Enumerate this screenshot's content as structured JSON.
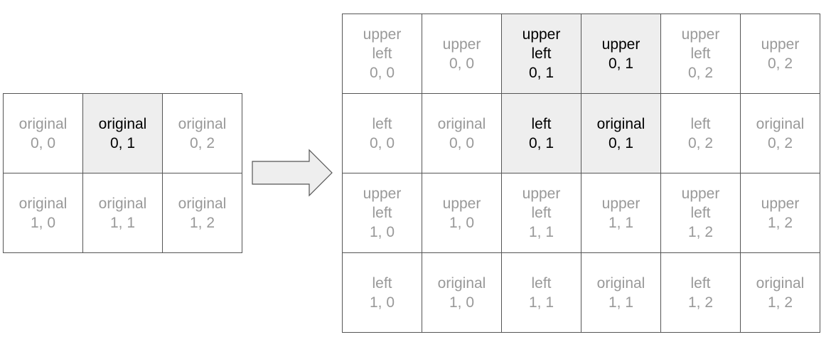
{
  "left_grid": {
    "highlight_color": "#eeeeee",
    "rows": [
      [
        {
          "lines": [
            "original",
            "0, 0"
          ],
          "highlight": false
        },
        {
          "lines": [
            "original",
            "0, 1"
          ],
          "highlight": true
        },
        {
          "lines": [
            "original",
            "0, 2"
          ],
          "highlight": false
        }
      ],
      [
        {
          "lines": [
            "original",
            "1, 0"
          ],
          "highlight": false
        },
        {
          "lines": [
            "original",
            "1, 1"
          ],
          "highlight": false
        },
        {
          "lines": [
            "original",
            "1, 2"
          ],
          "highlight": false
        }
      ]
    ]
  },
  "right_grid": {
    "highlight_color": "#eeeeee",
    "rows": [
      [
        {
          "lines": [
            "upper",
            "left",
            "0, 0"
          ],
          "highlight": false
        },
        {
          "lines": [
            "upper",
            "0, 0"
          ],
          "highlight": false
        },
        {
          "lines": [
            "upper",
            "left",
            "0, 1"
          ],
          "highlight": true
        },
        {
          "lines": [
            "upper",
            "0, 1"
          ],
          "highlight": true
        },
        {
          "lines": [
            "upper",
            "left",
            "0, 2"
          ],
          "highlight": false
        },
        {
          "lines": [
            "upper",
            "0, 2"
          ],
          "highlight": false
        }
      ],
      [
        {
          "lines": [
            "left",
            "0, 0"
          ],
          "highlight": false
        },
        {
          "lines": [
            "original",
            "0, 0"
          ],
          "highlight": false
        },
        {
          "lines": [
            "left",
            "0, 1"
          ],
          "highlight": true
        },
        {
          "lines": [
            "original",
            "0, 1"
          ],
          "highlight": true
        },
        {
          "lines": [
            "left",
            "0, 2"
          ],
          "highlight": false
        },
        {
          "lines": [
            "original",
            "0, 2"
          ],
          "highlight": false
        }
      ],
      [
        {
          "lines": [
            "upper",
            "left",
            "1, 0"
          ],
          "highlight": false
        },
        {
          "lines": [
            "upper",
            "1, 0"
          ],
          "highlight": false
        },
        {
          "lines": [
            "upper",
            "left",
            "1, 1"
          ],
          "highlight": false
        },
        {
          "lines": [
            "upper",
            "1, 1"
          ],
          "highlight": false
        },
        {
          "lines": [
            "upper",
            "left",
            "1, 2"
          ],
          "highlight": false
        },
        {
          "lines": [
            "upper",
            "1, 2"
          ],
          "highlight": false
        }
      ],
      [
        {
          "lines": [
            "left",
            "1, 0"
          ],
          "highlight": false
        },
        {
          "lines": [
            "original",
            "1, 0"
          ],
          "highlight": false
        },
        {
          "lines": [
            "left",
            "1, 1"
          ],
          "highlight": false
        },
        {
          "lines": [
            "original",
            "1, 1"
          ],
          "highlight": false
        },
        {
          "lines": [
            "left",
            "1, 2"
          ],
          "highlight": false
        },
        {
          "lines": [
            "original",
            "1, 2"
          ],
          "highlight": false
        }
      ]
    ]
  },
  "arrow": {
    "icon": "right-arrow-icon",
    "fill": "#eeeeee",
    "stroke": "#555555"
  }
}
